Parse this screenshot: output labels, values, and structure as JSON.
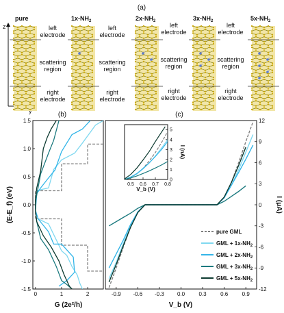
{
  "figure": {
    "panel_a": "(a)",
    "panel_b": "(b)",
    "panel_c": "(c)",
    "struct_labels": [
      "pure",
      "1x-NH",
      "2x-NH",
      "3x-NH",
      "5x-NH"
    ],
    "struct_sub": "2",
    "axis_z": "z",
    "axis_y": "y",
    "left_electrode": [
      "left",
      "electrode"
    ],
    "scattering": [
      "scattering",
      "region"
    ],
    "right_electrode": [
      "right",
      "electrode"
    ]
  },
  "chart_data": [
    {
      "type": "line",
      "panel": "(b)",
      "xlabel": "G (2e²/h)",
      "ylabel": "(E-E_f) (eV)",
      "xlim": [
        -0.1,
        2.6
      ],
      "ylim": [
        -1.5,
        1.5
      ],
      "xticks": [
        "0",
        "1",
        "2"
      ],
      "yticks": [
        "-1.5",
        "-1.0",
        "-0.5",
        "0.0",
        "0.5",
        "1.0",
        "1.5"
      ],
      "series": [
        {
          "name": "pure GML",
          "color": "#7f7f7f",
          "dash": true,
          "points": [
            [
              2.6,
              1.08
            ],
            [
              2.0,
              1.08
            ],
            [
              2.0,
              0.73
            ],
            [
              1.0,
              0.73
            ],
            [
              1.0,
              0.25
            ],
            [
              0,
              0.25
            ],
            [
              0,
              -0.25
            ],
            [
              1.0,
              -0.25
            ],
            [
              1.0,
              -0.72
            ],
            [
              2.0,
              -0.72
            ],
            [
              2.0,
              -1.18
            ],
            [
              2.6,
              -1.18
            ]
          ]
        },
        {
          "name": "GML + 1x-NH2",
          "color": "#7fd8f0",
          "points": [
            [
              2.6,
              1.5
            ],
            [
              2.3,
              1.42
            ],
            [
              1.8,
              1.1
            ],
            [
              1.5,
              0.92
            ],
            [
              1.0,
              0.8
            ],
            [
              0.7,
              0.63
            ],
            [
              0.5,
              0.3
            ],
            [
              0.2,
              0.27
            ],
            [
              0.05,
              0.22
            ],
            [
              0,
              -0.1
            ],
            [
              0.1,
              -0.25
            ],
            [
              0.5,
              -0.34
            ],
            [
              1.0,
              -0.82
            ],
            [
              1.2,
              -0.9
            ],
            [
              1.4,
              -1.1
            ],
            [
              1.6,
              -1.25
            ],
            [
              1.7,
              -1.4
            ],
            [
              1.8,
              -1.5
            ]
          ]
        },
        {
          "name": "GML + 2x-NH2",
          "color": "#33b5e8",
          "points": [
            [
              2.1,
              1.5
            ],
            [
              1.8,
              1.35
            ],
            [
              1.4,
              1.25
            ],
            [
              1.0,
              0.95
            ],
            [
              0.75,
              0.62
            ],
            [
              0.45,
              0.45
            ],
            [
              0.2,
              0.3
            ],
            [
              0.05,
              0.2
            ],
            [
              0,
              -0.1
            ],
            [
              0.1,
              -0.25
            ],
            [
              0.5,
              -0.48
            ],
            [
              0.7,
              -0.7
            ],
            [
              1.0,
              -0.7
            ],
            [
              1.45,
              -0.93
            ],
            [
              1.5,
              -1.2
            ],
            [
              1.2,
              -1.35
            ],
            [
              0.9,
              -1.45
            ]
          ]
        },
        {
          "name": "GML + 3x-NH2",
          "color": "#1c7a7f",
          "points": [
            [
              0.9,
              1.5
            ],
            [
              0.7,
              1.15
            ],
            [
              0.5,
              0.92
            ],
            [
              0.2,
              0.55
            ],
            [
              0.1,
              0.3
            ],
            [
              0.02,
              0.1
            ],
            [
              0,
              -0.1
            ],
            [
              0.05,
              -0.3
            ],
            [
              0.2,
              -0.6
            ],
            [
              0.5,
              -0.8
            ],
            [
              0.8,
              -1.1
            ],
            [
              1.0,
              -1.35
            ],
            [
              1.2,
              -1.42
            ],
            [
              1.4,
              -1.5
            ]
          ]
        },
        {
          "name": "GML + 5x-NH2",
          "color": "#0d3a30",
          "points": [
            [
              0.8,
              1.5
            ],
            [
              0.6,
              1.35
            ],
            [
              0.45,
              1.2
            ],
            [
              0.3,
              1.0
            ],
            [
              0.2,
              0.6
            ],
            [
              0.05,
              0.3
            ],
            [
              0,
              0.1
            ],
            [
              0,
              -0.1
            ],
            [
              0.05,
              -0.3
            ],
            [
              0.3,
              -0.55
            ],
            [
              0.6,
              -0.75
            ],
            [
              0.9,
              -1.0
            ],
            [
              1.1,
              -1.25
            ],
            [
              1.3,
              -1.45
            ],
            [
              1.4,
              -1.5
            ]
          ]
        }
      ]
    },
    {
      "type": "line",
      "panel": "(c)",
      "xlabel": "V_b (V)",
      "ylabel": "I (μA)",
      "xlim": [
        -1.05,
        1.05
      ],
      "ylim": [
        -12,
        12
      ],
      "xticks": [
        "-0.9",
        "-0.6",
        "-0.3",
        "0.0",
        "0.3",
        "0.6",
        "0.9"
      ],
      "yticks": [
        "-12",
        "-9",
        "-6",
        "-3",
        "0",
        "3",
        "6",
        "9",
        "12"
      ],
      "legend_position": "bottom-right",
      "series": [
        {
          "name": "pure GML",
          "color": "#7f7f7f",
          "dash": true,
          "points": [
            [
              -1.0,
              -11.8
            ],
            [
              -0.9,
              -9.0
            ],
            [
              -0.8,
              -6.0
            ],
            [
              -0.7,
              -3.2
            ],
            [
              -0.6,
              -1.0
            ],
            [
              -0.5,
              0
            ],
            [
              0.5,
              0
            ],
            [
              0.6,
              1.0
            ],
            [
              0.7,
              3.2
            ],
            [
              0.8,
              6.0
            ],
            [
              0.9,
              9.0
            ],
            [
              1.0,
              11.8
            ]
          ]
        },
        {
          "name": "GML + 1x-NH2",
          "color": "#7fd8f0",
          "points": [
            [
              -1.0,
              -10.5
            ],
            [
              -0.9,
              -8.2
            ],
            [
              -0.8,
              -5.5
            ],
            [
              -0.7,
              -3.0
            ],
            [
              -0.6,
              -1.0
            ],
            [
              -0.5,
              0
            ],
            [
              0.5,
              0
            ],
            [
              0.6,
              1.0
            ],
            [
              0.7,
              2.8
            ],
            [
              0.8,
              5.0
            ],
            [
              0.9,
              7.5
            ],
            [
              1.0,
              10.0
            ]
          ]
        },
        {
          "name": "GML + 2x-NH2",
          "color": "#33b5e8",
          "points": [
            [
              -1.0,
              -9.0
            ],
            [
              -0.9,
              -7.0
            ],
            [
              -0.8,
              -5.0
            ],
            [
              -0.7,
              -2.8
            ],
            [
              -0.6,
              -1.0
            ],
            [
              -0.5,
              0
            ],
            [
              0.5,
              0
            ],
            [
              0.6,
              1.0
            ],
            [
              0.7,
              2.8
            ],
            [
              0.8,
              4.6
            ],
            [
              0.9,
              6.5
            ],
            [
              1.0,
              8.5
            ]
          ]
        },
        {
          "name": "GML + 3x-NH2",
          "color": "#1c7a7f",
          "points": [
            [
              -1.0,
              -3.0
            ],
            [
              -0.9,
              -2.4
            ],
            [
              -0.8,
              -1.8
            ],
            [
              -0.7,
              -1.2
            ],
            [
              -0.6,
              -0.5
            ],
            [
              -0.5,
              0
            ],
            [
              0.5,
              0
            ],
            [
              0.6,
              0.5
            ],
            [
              0.7,
              1.2
            ],
            [
              0.8,
              1.9
            ],
            [
              0.9,
              2.7
            ]
          ]
        },
        {
          "name": "GML + 5x-NH2",
          "color": "#0d3a30",
          "points": [
            [
              -1.0,
              -11.0
            ],
            [
              -0.9,
              -8.5
            ],
            [
              -0.8,
              -5.8
            ],
            [
              -0.7,
              -3.2
            ],
            [
              -0.6,
              -1.1
            ],
            [
              -0.5,
              0
            ],
            [
              0.5,
              0
            ],
            [
              0.6,
              1.1
            ],
            [
              0.7,
              3.2
            ],
            [
              0.8,
              5.6
            ],
            [
              0.9,
              8.2
            ]
          ]
        }
      ]
    },
    {
      "type": "line",
      "panel": "(c)-inset",
      "xlabel": "V_b (V)",
      "ylabel": "I (nA)",
      "xlim": [
        0.45,
        0.8
      ],
      "ylim": [
        0,
        5.5
      ],
      "xticks": [
        "0.5",
        "0.6",
        "0.7",
        "0.8"
      ],
      "yticks": [
        "0",
        "1",
        "2",
        "3",
        "4",
        "5"
      ],
      "series": [
        {
          "name": "pure GML",
          "color": "#7f7f7f",
          "dash": true,
          "points": [
            [
              0.45,
              0.0
            ],
            [
              0.5,
              0.15
            ],
            [
              0.55,
              0.55
            ],
            [
              0.6,
              1.1
            ],
            [
              0.65,
              1.85
            ],
            [
              0.7,
              2.7
            ],
            [
              0.75,
              3.7
            ],
            [
              0.8,
              4.8
            ]
          ]
        },
        {
          "name": "GML + 1x-NH2",
          "color": "#7fd8f0",
          "points": [
            [
              0.45,
              0.0
            ],
            [
              0.5,
              0.2
            ],
            [
              0.55,
              0.55
            ],
            [
              0.6,
              1.05
            ],
            [
              0.65,
              1.65
            ],
            [
              0.7,
              2.35
            ],
            [
              0.75,
              3.15
            ],
            [
              0.8,
              4.0
            ]
          ]
        },
        {
          "name": "GML + 2x-NH2",
          "color": "#33b5e8",
          "points": [
            [
              0.45,
              0.0
            ],
            [
              0.5,
              0.25
            ],
            [
              0.55,
              0.6
            ],
            [
              0.6,
              1.1
            ],
            [
              0.65,
              1.65
            ],
            [
              0.7,
              2.3
            ],
            [
              0.75,
              3.0
            ],
            [
              0.8,
              3.8
            ]
          ]
        },
        {
          "name": "GML + 3x-NH2",
          "color": "#1c7a7f",
          "points": [
            [
              0.45,
              0.0
            ],
            [
              0.5,
              0.15
            ],
            [
              0.55,
              0.35
            ],
            [
              0.6,
              0.6
            ],
            [
              0.65,
              0.85
            ],
            [
              0.7,
              1.15
            ],
            [
              0.75,
              1.45
            ],
            [
              0.8,
              1.8
            ]
          ]
        },
        {
          "name": "GML + 5x-NH2",
          "color": "#0d3a30",
          "points": [
            [
              0.45,
              0.05
            ],
            [
              0.5,
              0.5
            ],
            [
              0.55,
              1.15
            ],
            [
              0.6,
              1.95
            ],
            [
              0.65,
              2.8
            ],
            [
              0.7,
              3.8
            ],
            [
              0.75,
              4.75
            ],
            [
              0.78,
              5.3
            ]
          ]
        }
      ]
    }
  ],
  "legend": {
    "items": [
      {
        "label": "pure GML",
        "color": "#7f7f7f",
        "dash": true
      },
      {
        "label": "GML + 1x-NH",
        "sub": "2",
        "color": "#7fd8f0"
      },
      {
        "label": "GML + 2x-NH",
        "sub": "2",
        "color": "#33b5e8"
      },
      {
        "label": "GML + 3x-NH",
        "sub": "2",
        "color": "#1c7a7f"
      },
      {
        "label": "GML + 5x-NH",
        "sub": "2",
        "color": "#0d3a30"
      }
    ]
  },
  "colors": {
    "ribbon_atom": "#c8a400",
    "ribbon_bond": "#6d6d00",
    "axis": "#111111"
  }
}
